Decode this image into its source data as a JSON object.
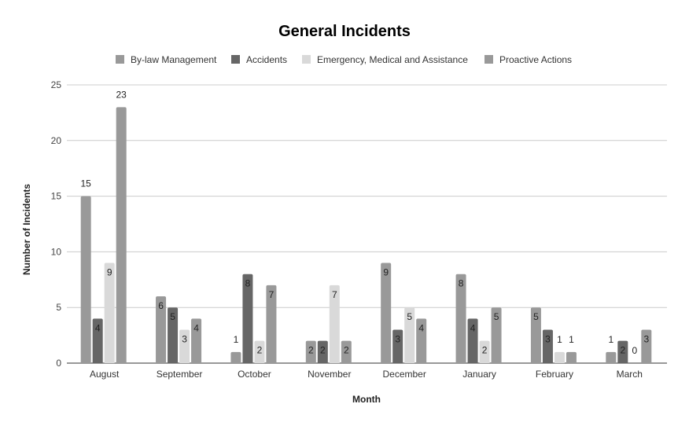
{
  "chart_data": {
    "type": "bar",
    "title": "General Incidents",
    "xlabel": "Month",
    "ylabel": "Number of Incidents",
    "ylim": [
      0,
      25
    ],
    "yticks": [
      0,
      5,
      10,
      15,
      20,
      25
    ],
    "grid": true,
    "legend_position": "top",
    "categories": [
      "August",
      "September",
      "October",
      "November",
      "December",
      "January",
      "February",
      "March"
    ],
    "series": [
      {
        "name": "By-law Management",
        "color": "#999999",
        "values": [
          15,
          6,
          1,
          2,
          9,
          8,
          5,
          1
        ]
      },
      {
        "name": "Accidents",
        "color": "#666666",
        "values": [
          4,
          5,
          8,
          2,
          3,
          4,
          3,
          2
        ]
      },
      {
        "name": "Emergency, Medical and Assistance",
        "color": "#d9d9d9",
        "values": [
          9,
          3,
          2,
          7,
          5,
          2,
          1,
          0
        ]
      },
      {
        "name": "Proactive Actions",
        "color": "#999999",
        "values": [
          23,
          4,
          7,
          2,
          4,
          5,
          1,
          3
        ]
      }
    ]
  }
}
